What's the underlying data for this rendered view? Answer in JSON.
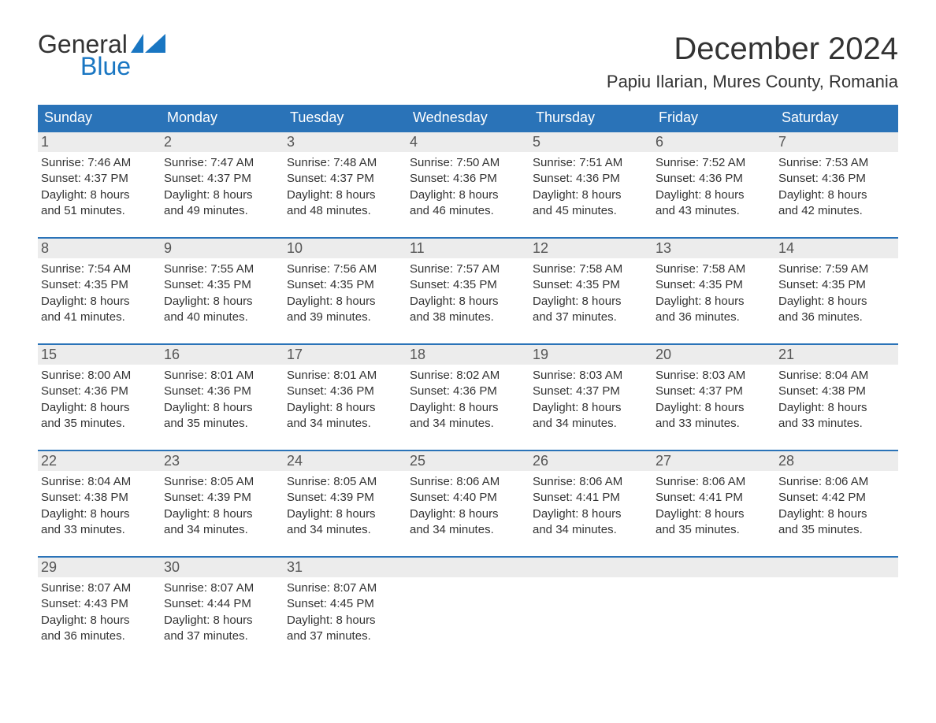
{
  "brand": {
    "word1": "General",
    "word2": "Blue",
    "text_color": "#333333",
    "accent_color": "#1976c2"
  },
  "header": {
    "month_title": "December 2024",
    "location": "Papiu Ilarian, Mures County, Romania",
    "title_fontsize": 40,
    "location_fontsize": 22
  },
  "calendar": {
    "header_bg": "#2a73b8",
    "header_text_color": "#ffffff",
    "daynum_bg": "#ececec",
    "row_separator_color": "#2a73b8",
    "body_text_color": "#333333",
    "body_fontsize": 15,
    "days_of_week": [
      "Sunday",
      "Monday",
      "Tuesday",
      "Wednesday",
      "Thursday",
      "Friday",
      "Saturday"
    ],
    "weeks": [
      [
        {
          "n": "1",
          "sunrise": "Sunrise: 7:46 AM",
          "sunset": "Sunset: 4:37 PM",
          "day1": "Daylight: 8 hours",
          "day2": "and 51 minutes."
        },
        {
          "n": "2",
          "sunrise": "Sunrise: 7:47 AM",
          "sunset": "Sunset: 4:37 PM",
          "day1": "Daylight: 8 hours",
          "day2": "and 49 minutes."
        },
        {
          "n": "3",
          "sunrise": "Sunrise: 7:48 AM",
          "sunset": "Sunset: 4:37 PM",
          "day1": "Daylight: 8 hours",
          "day2": "and 48 minutes."
        },
        {
          "n": "4",
          "sunrise": "Sunrise: 7:50 AM",
          "sunset": "Sunset: 4:36 PM",
          "day1": "Daylight: 8 hours",
          "day2": "and 46 minutes."
        },
        {
          "n": "5",
          "sunrise": "Sunrise: 7:51 AM",
          "sunset": "Sunset: 4:36 PM",
          "day1": "Daylight: 8 hours",
          "day2": "and 45 minutes."
        },
        {
          "n": "6",
          "sunrise": "Sunrise: 7:52 AM",
          "sunset": "Sunset: 4:36 PM",
          "day1": "Daylight: 8 hours",
          "day2": "and 43 minutes."
        },
        {
          "n": "7",
          "sunrise": "Sunrise: 7:53 AM",
          "sunset": "Sunset: 4:36 PM",
          "day1": "Daylight: 8 hours",
          "day2": "and 42 minutes."
        }
      ],
      [
        {
          "n": "8",
          "sunrise": "Sunrise: 7:54 AM",
          "sunset": "Sunset: 4:35 PM",
          "day1": "Daylight: 8 hours",
          "day2": "and 41 minutes."
        },
        {
          "n": "9",
          "sunrise": "Sunrise: 7:55 AM",
          "sunset": "Sunset: 4:35 PM",
          "day1": "Daylight: 8 hours",
          "day2": "and 40 minutes."
        },
        {
          "n": "10",
          "sunrise": "Sunrise: 7:56 AM",
          "sunset": "Sunset: 4:35 PM",
          "day1": "Daylight: 8 hours",
          "day2": "and 39 minutes."
        },
        {
          "n": "11",
          "sunrise": "Sunrise: 7:57 AM",
          "sunset": "Sunset: 4:35 PM",
          "day1": "Daylight: 8 hours",
          "day2": "and 38 minutes."
        },
        {
          "n": "12",
          "sunrise": "Sunrise: 7:58 AM",
          "sunset": "Sunset: 4:35 PM",
          "day1": "Daylight: 8 hours",
          "day2": "and 37 minutes."
        },
        {
          "n": "13",
          "sunrise": "Sunrise: 7:58 AM",
          "sunset": "Sunset: 4:35 PM",
          "day1": "Daylight: 8 hours",
          "day2": "and 36 minutes."
        },
        {
          "n": "14",
          "sunrise": "Sunrise: 7:59 AM",
          "sunset": "Sunset: 4:35 PM",
          "day1": "Daylight: 8 hours",
          "day2": "and 36 minutes."
        }
      ],
      [
        {
          "n": "15",
          "sunrise": "Sunrise: 8:00 AM",
          "sunset": "Sunset: 4:36 PM",
          "day1": "Daylight: 8 hours",
          "day2": "and 35 minutes."
        },
        {
          "n": "16",
          "sunrise": "Sunrise: 8:01 AM",
          "sunset": "Sunset: 4:36 PM",
          "day1": "Daylight: 8 hours",
          "day2": "and 35 minutes."
        },
        {
          "n": "17",
          "sunrise": "Sunrise: 8:01 AM",
          "sunset": "Sunset: 4:36 PM",
          "day1": "Daylight: 8 hours",
          "day2": "and 34 minutes."
        },
        {
          "n": "18",
          "sunrise": "Sunrise: 8:02 AM",
          "sunset": "Sunset: 4:36 PM",
          "day1": "Daylight: 8 hours",
          "day2": "and 34 minutes."
        },
        {
          "n": "19",
          "sunrise": "Sunrise: 8:03 AM",
          "sunset": "Sunset: 4:37 PM",
          "day1": "Daylight: 8 hours",
          "day2": "and 34 minutes."
        },
        {
          "n": "20",
          "sunrise": "Sunrise: 8:03 AM",
          "sunset": "Sunset: 4:37 PM",
          "day1": "Daylight: 8 hours",
          "day2": "and 33 minutes."
        },
        {
          "n": "21",
          "sunrise": "Sunrise: 8:04 AM",
          "sunset": "Sunset: 4:38 PM",
          "day1": "Daylight: 8 hours",
          "day2": "and 33 minutes."
        }
      ],
      [
        {
          "n": "22",
          "sunrise": "Sunrise: 8:04 AM",
          "sunset": "Sunset: 4:38 PM",
          "day1": "Daylight: 8 hours",
          "day2": "and 33 minutes."
        },
        {
          "n": "23",
          "sunrise": "Sunrise: 8:05 AM",
          "sunset": "Sunset: 4:39 PM",
          "day1": "Daylight: 8 hours",
          "day2": "and 34 minutes."
        },
        {
          "n": "24",
          "sunrise": "Sunrise: 8:05 AM",
          "sunset": "Sunset: 4:39 PM",
          "day1": "Daylight: 8 hours",
          "day2": "and 34 minutes."
        },
        {
          "n": "25",
          "sunrise": "Sunrise: 8:06 AM",
          "sunset": "Sunset: 4:40 PM",
          "day1": "Daylight: 8 hours",
          "day2": "and 34 minutes."
        },
        {
          "n": "26",
          "sunrise": "Sunrise: 8:06 AM",
          "sunset": "Sunset: 4:41 PM",
          "day1": "Daylight: 8 hours",
          "day2": "and 34 minutes."
        },
        {
          "n": "27",
          "sunrise": "Sunrise: 8:06 AM",
          "sunset": "Sunset: 4:41 PM",
          "day1": "Daylight: 8 hours",
          "day2": "and 35 minutes."
        },
        {
          "n": "28",
          "sunrise": "Sunrise: 8:06 AM",
          "sunset": "Sunset: 4:42 PM",
          "day1": "Daylight: 8 hours",
          "day2": "and 35 minutes."
        }
      ],
      [
        {
          "n": "29",
          "sunrise": "Sunrise: 8:07 AM",
          "sunset": "Sunset: 4:43 PM",
          "day1": "Daylight: 8 hours",
          "day2": "and 36 minutes."
        },
        {
          "n": "30",
          "sunrise": "Sunrise: 8:07 AM",
          "sunset": "Sunset: 4:44 PM",
          "day1": "Daylight: 8 hours",
          "day2": "and 37 minutes."
        },
        {
          "n": "31",
          "sunrise": "Sunrise: 8:07 AM",
          "sunset": "Sunset: 4:45 PM",
          "day1": "Daylight: 8 hours",
          "day2": "and 37 minutes."
        },
        null,
        null,
        null,
        null
      ]
    ]
  }
}
